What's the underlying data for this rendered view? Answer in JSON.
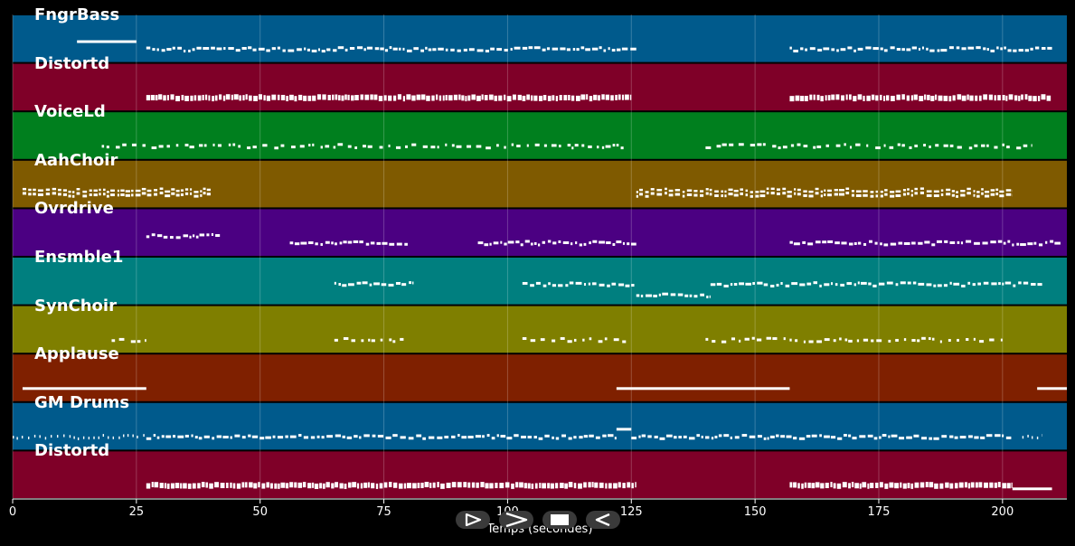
{
  "chart_data": {
    "type": "piano-roll",
    "xlabel": "Temps (secondes)",
    "xlim": [
      0,
      213
    ],
    "xticks": [
      0,
      25,
      50,
      75,
      100,
      125,
      150,
      175,
      200
    ],
    "tracks": [
      {
        "name": "FngrBass",
        "color": "#005a8c",
        "segments": [
          [
            13,
            25,
            "up",
            "solid"
          ],
          [
            27,
            126,
            "mid",
            "dense"
          ],
          [
            157,
            210,
            "mid",
            "dense"
          ]
        ]
      },
      {
        "name": "Distortd",
        "color": "#7f0028",
        "segments": [
          [
            27,
            125,
            "mid",
            "block"
          ],
          [
            157,
            210,
            "mid",
            "block"
          ]
        ]
      },
      {
        "name": "VoiceLd",
        "color": "#007f1e",
        "segments": [
          [
            18,
            124,
            "mid",
            "sparse"
          ],
          [
            140,
            206,
            "mid",
            "sparse"
          ]
        ]
      },
      {
        "name": "AahChoir",
        "color": "#7f5a00",
        "segments": [
          [
            2,
            40,
            "mid",
            "double"
          ],
          [
            126,
            202,
            "mid",
            "double"
          ]
        ]
      },
      {
        "name": "Ovrdrive",
        "color": "#4b0082",
        "segments": [
          [
            27,
            42,
            "up",
            "dense"
          ],
          [
            56,
            80,
            "mid",
            "dense"
          ],
          [
            94,
            126,
            "mid",
            "dense"
          ],
          [
            157,
            212,
            "mid",
            "dense"
          ]
        ]
      },
      {
        "name": "Ensmble1",
        "color": "#007f7f",
        "segments": [
          [
            65,
            81,
            "up",
            "dense"
          ],
          [
            103,
            126,
            "up",
            "dense"
          ],
          [
            126,
            141,
            "low",
            "dense"
          ],
          [
            141,
            208,
            "up",
            "dense"
          ]
        ]
      },
      {
        "name": "SynChoir",
        "color": "#7f7f00",
        "segments": [
          [
            20,
            27,
            "mid",
            "sparse"
          ],
          [
            65,
            79,
            "mid",
            "sparse"
          ],
          [
            103,
            124,
            "mid",
            "sparse"
          ],
          [
            140,
            200,
            "mid",
            "sparse"
          ]
        ]
      },
      {
        "name": "Applause",
        "color": "#7f2000",
        "segments": [
          [
            2,
            27,
            "mid",
            "line"
          ],
          [
            122,
            157,
            "mid",
            "line"
          ],
          [
            207,
            213,
            "mid",
            "line"
          ]
        ]
      },
      {
        "name": "GM Drums",
        "color": "#005a8c",
        "segments": [
          [
            0,
            27,
            "mid",
            "dots"
          ],
          [
            27,
            122,
            "mid",
            "dense"
          ],
          [
            122,
            125,
            "up",
            "solid"
          ],
          [
            125,
            202,
            "mid",
            "dense"
          ],
          [
            204,
            208,
            "mid",
            "dots"
          ]
        ]
      },
      {
        "name": "Distortd",
        "color": "#7f0028",
        "segments": [
          [
            27,
            126,
            "mid",
            "block"
          ],
          [
            157,
            202,
            "mid",
            "block"
          ],
          [
            202,
            210,
            "low",
            "solid"
          ]
        ]
      }
    ]
  },
  "controls": [
    {
      "icon": "play-outline-icon",
      "label": "Lecture"
    },
    {
      "icon": "forward-icon",
      "label": "Avancer"
    },
    {
      "icon": "stop-icon",
      "label": "Arrêt"
    },
    {
      "icon": "rewind-icon",
      "label": "Reculer"
    }
  ]
}
